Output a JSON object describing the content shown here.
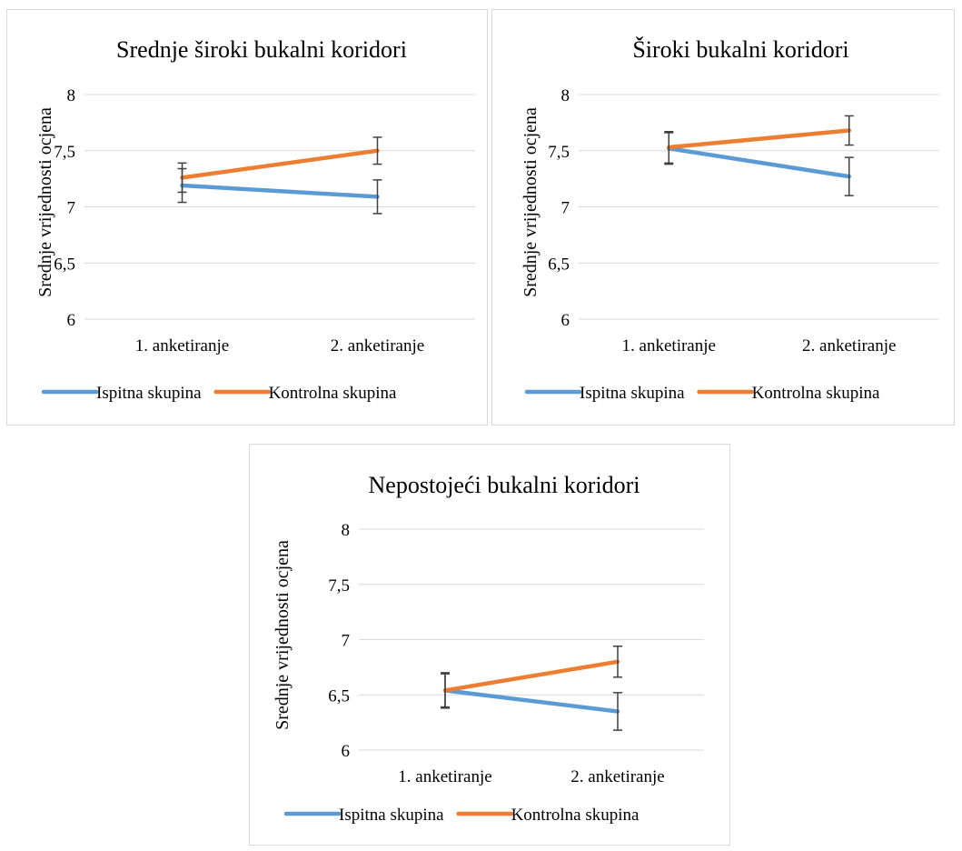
{
  "chart_data": [
    {
      "type": "line",
      "title": "Srednje široki bukalni koridori",
      "xlabel": "",
      "ylabel": "Srednje vrijednosti ocjena",
      "categories": [
        "1. anketiranje",
        "2. anketiranje"
      ],
      "ylim": [
        6,
        8
      ],
      "yticks": [
        "6",
        "6,5",
        "7",
        "7,5",
        "8"
      ],
      "grid": true,
      "legend": "bottom",
      "series": [
        {
          "name": "Ispitna skupina",
          "color": "#5B9BD5",
          "values": [
            7.19,
            7.09
          ],
          "error": [
            0.15,
            0.15
          ]
        },
        {
          "name": "Kontrolna skupina",
          "color": "#ED7D31",
          "values": [
            7.26,
            7.5
          ],
          "error": [
            0.13,
            0.12
          ]
        }
      ]
    },
    {
      "type": "line",
      "title": "Široki bukalni koridori",
      "xlabel": "",
      "ylabel": "Srednje vrijednosti ocjena",
      "categories": [
        "1. anketiranje",
        "2. anketiranje"
      ],
      "ylim": [
        6,
        8
      ],
      "yticks": [
        "6",
        "6,5",
        "7",
        "7,5",
        "8"
      ],
      "grid": true,
      "legend": "bottom",
      "series": [
        {
          "name": "Ispitna skupina",
          "color": "#5B9BD5",
          "values": [
            7.52,
            7.27
          ],
          "error": [
            0.14,
            0.17
          ]
        },
        {
          "name": "Kontrolna skupina",
          "color": "#ED7D31",
          "values": [
            7.53,
            7.68
          ],
          "error": [
            0.14,
            0.13
          ]
        }
      ]
    },
    {
      "type": "line",
      "title": "Nepostojeći bukalni koridori",
      "xlabel": "",
      "ylabel": "Srednje vrijednosti ocjena",
      "categories": [
        "1. anketiranje",
        "2. anketiranje"
      ],
      "ylim": [
        6,
        8
      ],
      "yticks": [
        "6",
        "6,5",
        "7",
        "7,5",
        "8"
      ],
      "grid": true,
      "legend": "bottom",
      "series": [
        {
          "name": "Ispitna skupina",
          "color": "#5B9BD5",
          "values": [
            6.54,
            6.35
          ],
          "error": [
            0.16,
            0.17
          ]
        },
        {
          "name": "Kontrolna skupina",
          "color": "#ED7D31",
          "values": [
            6.54,
            6.8
          ],
          "error": [
            0.15,
            0.14
          ]
        }
      ]
    }
  ]
}
